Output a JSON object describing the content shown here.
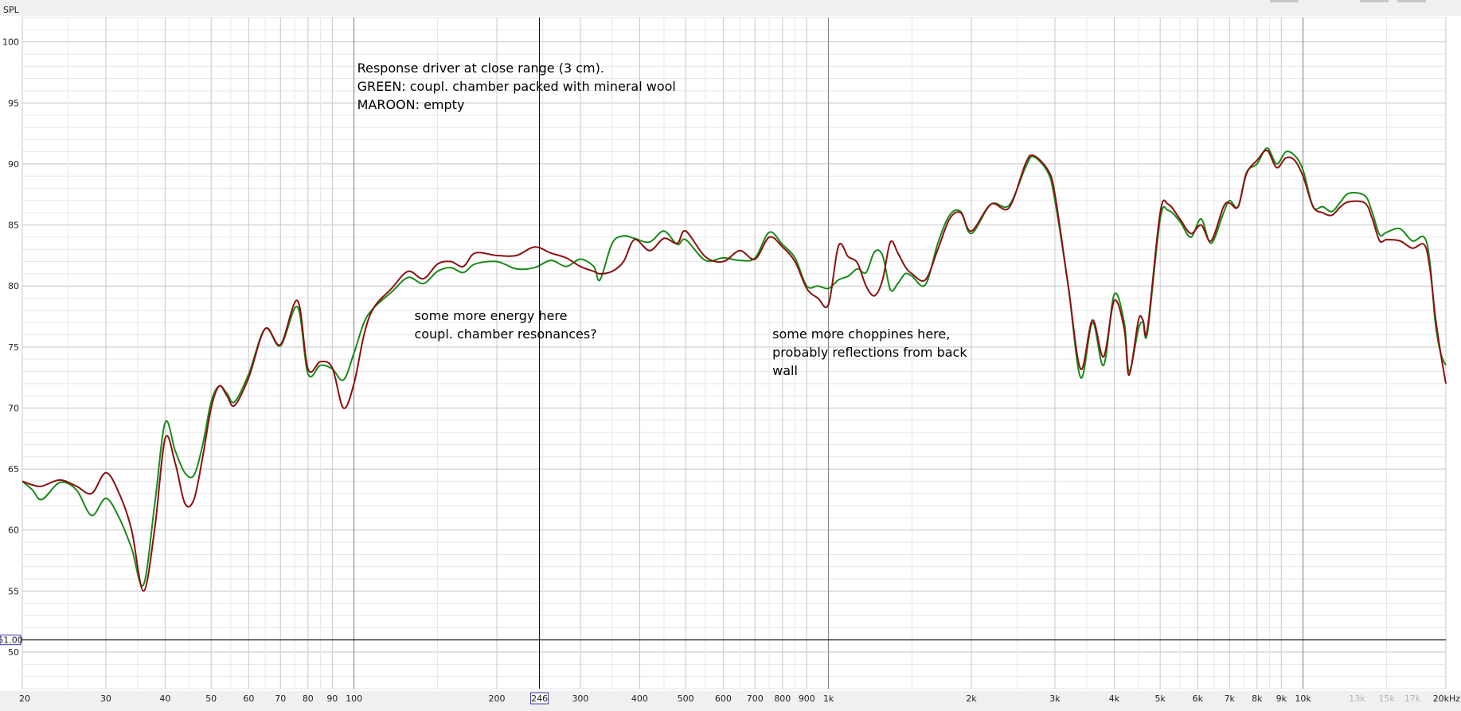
{
  "chart_data": {
    "type": "line",
    "ylabel": "SPL",
    "xlabel": "",
    "x_scale": "log",
    "xlim": [
      20,
      20000
    ],
    "ylim": [
      47,
      102
    ],
    "grid": true,
    "y_ticks": [
      50,
      55,
      60,
      65,
      70,
      75,
      80,
      85,
      90,
      95,
      100
    ],
    "x_ticks": [
      {
        "v": 20,
        "label": "20"
      },
      {
        "v": 30,
        "label": "30"
      },
      {
        "v": 40,
        "label": "40"
      },
      {
        "v": 50,
        "label": "50"
      },
      {
        "v": 60,
        "label": "60"
      },
      {
        "v": 70,
        "label": "70"
      },
      {
        "v": 80,
        "label": "80"
      },
      {
        "v": 90,
        "label": "90"
      },
      {
        "v": 100,
        "label": "100"
      },
      {
        "v": 200,
        "label": "200"
      },
      {
        "v": 300,
        "label": "300"
      },
      {
        "v": 400,
        "label": "400"
      },
      {
        "v": 500,
        "label": "500"
      },
      {
        "v": 600,
        "label": "600"
      },
      {
        "v": 700,
        "label": "700"
      },
      {
        "v": 800,
        "label": "800"
      },
      {
        "v": 900,
        "label": "900"
      },
      {
        "v": 1000,
        "label": "1k"
      },
      {
        "v": 2000,
        "label": "2k"
      },
      {
        "v": 3000,
        "label": "3k"
      },
      {
        "v": 4000,
        "label": "4k"
      },
      {
        "v": 5000,
        "label": "5k"
      },
      {
        "v": 6000,
        "label": "6k"
      },
      {
        "v": 7000,
        "label": "7k"
      },
      {
        "v": 8000,
        "label": "8k"
      },
      {
        "v": 9000,
        "label": "9k"
      },
      {
        "v": 10000,
        "label": "10k"
      },
      {
        "v": 13000,
        "label": "13k",
        "minor": true
      },
      {
        "v": 15000,
        "label": "15k",
        "minor": true
      },
      {
        "v": 17000,
        "label": "17k",
        "minor": true
      },
      {
        "v": 20000,
        "label": "20kHz"
      }
    ],
    "cursor": {
      "x": 246,
      "x_label": "246",
      "y": 51,
      "y_label": "51.00"
    },
    "series": [
      {
        "color": "#1a8a1a",
        "points": [
          [
            20,
            64
          ],
          [
            21,
            63.3
          ],
          [
            22,
            62.5
          ],
          [
            24,
            63.9
          ],
          [
            26,
            63.3
          ],
          [
            28,
            61.2
          ],
          [
            30,
            62.6
          ],
          [
            32,
            61
          ],
          [
            34,
            58.5
          ],
          [
            36,
            55.5
          ],
          [
            38,
            62
          ],
          [
            40,
            68.8
          ],
          [
            42,
            66.5
          ],
          [
            44,
            64.7
          ],
          [
            46,
            64.5
          ],
          [
            48,
            67
          ],
          [
            50,
            70.5
          ],
          [
            52,
            71.8
          ],
          [
            54,
            71.2
          ],
          [
            56,
            70.5
          ],
          [
            60,
            72.8
          ],
          [
            65,
            76.5
          ],
          [
            70,
            75.1
          ],
          [
            76,
            78.3
          ],
          [
            80,
            72.8
          ],
          [
            85,
            73.5
          ],
          [
            90,
            73.2
          ],
          [
            95,
            72.3
          ],
          [
            100,
            74.5
          ],
          [
            105,
            77
          ],
          [
            110,
            78.2
          ],
          [
            120,
            79.5
          ],
          [
            130,
            80.7
          ],
          [
            140,
            80.2
          ],
          [
            150,
            81.2
          ],
          [
            160,
            81.5
          ],
          [
            170,
            81.1
          ],
          [
            180,
            81.8
          ],
          [
            200,
            82
          ],
          [
            220,
            81.4
          ],
          [
            240,
            81.5
          ],
          [
            260,
            82.1
          ],
          [
            280,
            81.6
          ],
          [
            300,
            82.2
          ],
          [
            320,
            81.6
          ],
          [
            330,
            80.5
          ],
          [
            350,
            83.5
          ],
          [
            370,
            84.1
          ],
          [
            390,
            83.9
          ],
          [
            420,
            83.6
          ],
          [
            450,
            84.5
          ],
          [
            480,
            83.4
          ],
          [
            500,
            83.8
          ],
          [
            550,
            82.1
          ],
          [
            600,
            82.3
          ],
          [
            650,
            82.1
          ],
          [
            700,
            82.3
          ],
          [
            750,
            84.4
          ],
          [
            800,
            83.4
          ],
          [
            850,
            82.3
          ],
          [
            900,
            80
          ],
          [
            950,
            80
          ],
          [
            1000,
            79.8
          ],
          [
            1050,
            80.5
          ],
          [
            1100,
            80.8
          ],
          [
            1150,
            81.4
          ],
          [
            1200,
            81.1
          ],
          [
            1250,
            82.8
          ],
          [
            1300,
            82.5
          ],
          [
            1350,
            79.7
          ],
          [
            1400,
            80.2
          ],
          [
            1450,
            81
          ],
          [
            1500,
            80.8
          ],
          [
            1600,
            80.1
          ],
          [
            1700,
            83.5
          ],
          [
            1800,
            85.8
          ],
          [
            1900,
            86.1
          ],
          [
            2000,
            84.3
          ],
          [
            2200,
            86.7
          ],
          [
            2400,
            86.6
          ],
          [
            2600,
            89.7
          ],
          [
            2700,
            90.6
          ],
          [
            2900,
            89.3
          ],
          [
            3000,
            87
          ],
          [
            3200,
            80
          ],
          [
            3400,
            72.5
          ],
          [
            3600,
            77
          ],
          [
            3800,
            73.5
          ],
          [
            4000,
            79.3
          ],
          [
            4200,
            77
          ],
          [
            4300,
            73
          ],
          [
            4500,
            76.5
          ],
          [
            4600,
            77
          ],
          [
            4700,
            76.2
          ],
          [
            5000,
            85.5
          ],
          [
            5200,
            86.2
          ],
          [
            5500,
            85.3
          ],
          [
            5800,
            84
          ],
          [
            6100,
            85.5
          ],
          [
            6400,
            83.5
          ],
          [
            6800,
            86
          ],
          [
            7000,
            87
          ],
          [
            7300,
            86.5
          ],
          [
            7600,
            89.3
          ],
          [
            8000,
            90
          ],
          [
            8400,
            91.3
          ],
          [
            8800,
            90
          ],
          [
            9200,
            91
          ],
          [
            9600,
            90.7
          ],
          [
            10000,
            89.5
          ],
          [
            10500,
            86.5
          ],
          [
            11000,
            86.5
          ],
          [
            11500,
            86.1
          ],
          [
            12000,
            86.9
          ],
          [
            12500,
            87.6
          ],
          [
            13500,
            87.4
          ],
          [
            14000,
            86
          ],
          [
            14500,
            84.2
          ],
          [
            15000,
            84.4
          ],
          [
            16000,
            84.7
          ],
          [
            17000,
            83.7
          ],
          [
            18000,
            84
          ],
          [
            18500,
            82
          ],
          [
            19000,
            77
          ],
          [
            19500,
            74.5
          ],
          [
            20000,
            73.5
          ]
        ]
      },
      {
        "color": "#8b1010",
        "points": [
          [
            20,
            64
          ],
          [
            21,
            63.7
          ],
          [
            22,
            63.6
          ],
          [
            24,
            64.1
          ],
          [
            26,
            63.6
          ],
          [
            28,
            63
          ],
          [
            30,
            64.7
          ],
          [
            32,
            63
          ],
          [
            34,
            60
          ],
          [
            36,
            55
          ],
          [
            38,
            60
          ],
          [
            40,
            67.5
          ],
          [
            42,
            65.5
          ],
          [
            44,
            62.2
          ],
          [
            46,
            62.5
          ],
          [
            48,
            66
          ],
          [
            50,
            70
          ],
          [
            52,
            71.8
          ],
          [
            54,
            71
          ],
          [
            56,
            70.2
          ],
          [
            60,
            72.5
          ],
          [
            65,
            76.5
          ],
          [
            70,
            75.2
          ],
          [
            76,
            78.8
          ],
          [
            80,
            73.2
          ],
          [
            85,
            73.8
          ],
          [
            90,
            73.3
          ],
          [
            95,
            70
          ],
          [
            100,
            72
          ],
          [
            105,
            76
          ],
          [
            110,
            78.2
          ],
          [
            120,
            79.8
          ],
          [
            130,
            81.2
          ],
          [
            140,
            80.6
          ],
          [
            150,
            81.8
          ],
          [
            160,
            82
          ],
          [
            170,
            81.6
          ],
          [
            180,
            82.7
          ],
          [
            200,
            82.5
          ],
          [
            220,
            82.5
          ],
          [
            240,
            83.2
          ],
          [
            260,
            82.7
          ],
          [
            280,
            82.3
          ],
          [
            300,
            81.6
          ],
          [
            320,
            81.2
          ],
          [
            330,
            81
          ],
          [
            350,
            81.2
          ],
          [
            370,
            82
          ],
          [
            390,
            83.8
          ],
          [
            420,
            82.9
          ],
          [
            450,
            83.9
          ],
          [
            480,
            83.5
          ],
          [
            500,
            84.5
          ],
          [
            550,
            82.4
          ],
          [
            600,
            82
          ],
          [
            650,
            82.9
          ],
          [
            700,
            82.2
          ],
          [
            750,
            84
          ],
          [
            800,
            83.2
          ],
          [
            850,
            82
          ],
          [
            900,
            79.8
          ],
          [
            950,
            79
          ],
          [
            1000,
            78.5
          ],
          [
            1050,
            83.3
          ],
          [
            1100,
            82.4
          ],
          [
            1150,
            81.9
          ],
          [
            1200,
            80
          ],
          [
            1250,
            79.2
          ],
          [
            1300,
            80.5
          ],
          [
            1350,
            83.6
          ],
          [
            1400,
            82.7
          ],
          [
            1450,
            81.6
          ],
          [
            1500,
            81
          ],
          [
            1600,
            80.5
          ],
          [
            1700,
            83
          ],
          [
            1800,
            85.5
          ],
          [
            1900,
            86
          ],
          [
            2000,
            84.5
          ],
          [
            2200,
            86.7
          ],
          [
            2400,
            86.4
          ],
          [
            2600,
            90
          ],
          [
            2700,
            90.7
          ],
          [
            2900,
            89.5
          ],
          [
            3000,
            87.5
          ],
          [
            3200,
            80
          ],
          [
            3400,
            73.2
          ],
          [
            3600,
            77.2
          ],
          [
            3800,
            74.2
          ],
          [
            4000,
            78.8
          ],
          [
            4200,
            76.5
          ],
          [
            4300,
            72.7
          ],
          [
            4500,
            77.2
          ],
          [
            4600,
            77.2
          ],
          [
            4700,
            76.5
          ],
          [
            5000,
            86
          ],
          [
            5200,
            86.7
          ],
          [
            5500,
            85.5
          ],
          [
            5800,
            84.3
          ],
          [
            6100,
            85
          ],
          [
            6400,
            83.7
          ],
          [
            6800,
            86.5
          ],
          [
            7000,
            86.8
          ],
          [
            7300,
            86.5
          ],
          [
            7600,
            89.2
          ],
          [
            8000,
            90.3
          ],
          [
            8400,
            91.1
          ],
          [
            8800,
            89.7
          ],
          [
            9200,
            90.5
          ],
          [
            9600,
            90.3
          ],
          [
            10000,
            89
          ],
          [
            10500,
            86.5
          ],
          [
            11000,
            86
          ],
          [
            11500,
            85.8
          ],
          [
            12000,
            86.5
          ],
          [
            12500,
            86.9
          ],
          [
            13500,
            86.8
          ],
          [
            14000,
            85.5
          ],
          [
            14500,
            83.7
          ],
          [
            15000,
            83.8
          ],
          [
            16000,
            83.7
          ],
          [
            17000,
            83.1
          ],
          [
            18000,
            83.4
          ],
          [
            18500,
            81.5
          ],
          [
            19000,
            77.5
          ],
          [
            19500,
            74.5
          ],
          [
            20000,
            72
          ]
        ]
      }
    ],
    "annotations": [
      {
        "lines": [
          "Response driver at close range (3 cm).",
          "GREEN: coupl. chamber packed with mineral wool",
          "MAROON: empty"
        ],
        "x": 100,
        "y": 97.5
      },
      {
        "lines": [
          "some more energy here",
          "coupl. chamber resonances?"
        ],
        "x": 132,
        "y": 77.2
      },
      {
        "lines": [
          "some more choppines here,",
          "probably reflections from back",
          "wall"
        ],
        "x": 750,
        "y": 75.7
      }
    ]
  }
}
